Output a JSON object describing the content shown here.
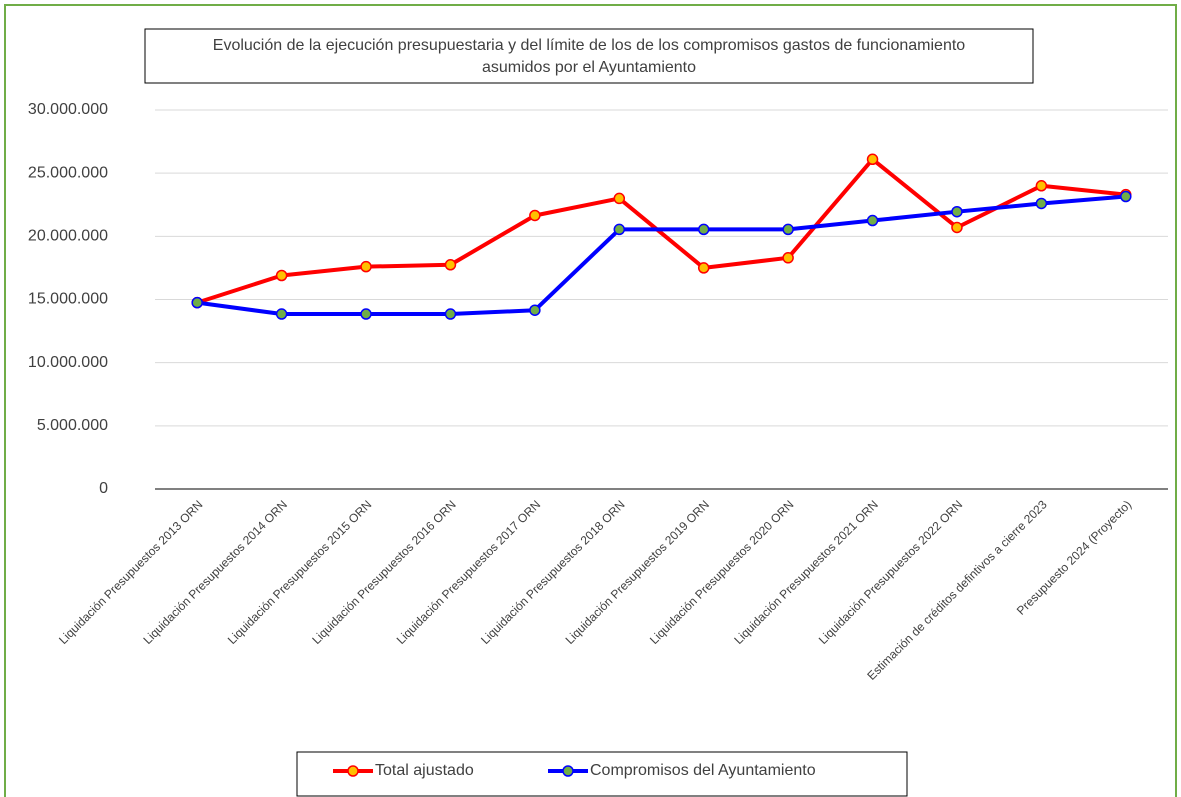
{
  "chart_data": {
    "type": "line",
    "title": [
      "Evolución de la ejecución presupuestaria y del límite de los de los compromisos gastos de funcionamiento",
      "asumidos por el Ayuntamiento"
    ],
    "categories": [
      "Liquidación Presupuestos 2013 ORN",
      "Liquidación Presupuestos 2014 ORN",
      "Liquidación Presupuestos 2015 ORN",
      "Liquidación Presupuestos 2016 ORN",
      "Liquidación Presupuestos 2017 ORN",
      "Liquidación Presupuestos 2018 ORN",
      "Liquidación Presupuestos 2019 ORN",
      "Liquidación Presupuestos 2020 ORN",
      "Liquidación Presupuestos 2021 ORN",
      "Liquidación Presupuestos 2022 ORN",
      "Estimación de créditos defintivos a cierre 2023",
      "Presupuesto 2024 (Proyecto)"
    ],
    "series": [
      {
        "name": "Total ajustado",
        "color": "#ff0000",
        "marker_color": "#ffc000",
        "values": [
          14750000,
          16900000,
          17600000,
          17750000,
          21650000,
          23000000,
          17500000,
          18300000,
          26100000,
          20700000,
          24000000,
          23300000
        ]
      },
      {
        "name": "Compromisos del Ayuntamiento",
        "color": "#0000ff",
        "marker_color": "#70ad47",
        "values": [
          14750000,
          13850000,
          13850000,
          13850000,
          14150000,
          20550000,
          20550000,
          20550000,
          21250000,
          21950000,
          22600000,
          23150000
        ]
      }
    ],
    "ylim": [
      0,
      30000000
    ],
    "yticks": [
      0,
      {
        "value": 5000000,
        "label": "5.000.000"
      },
      {
        "value": 10000000,
        "label": "10.000.000"
      },
      {
        "value": 15000000,
        "label": "15.000.000"
      },
      {
        "value": 20000000,
        "label": "20.000.000"
      },
      {
        "value": 25000000,
        "label": "25.000.000"
      },
      {
        "value": 30000000,
        "label": "30.000.000"
      }
    ],
    "grid": true
  }
}
